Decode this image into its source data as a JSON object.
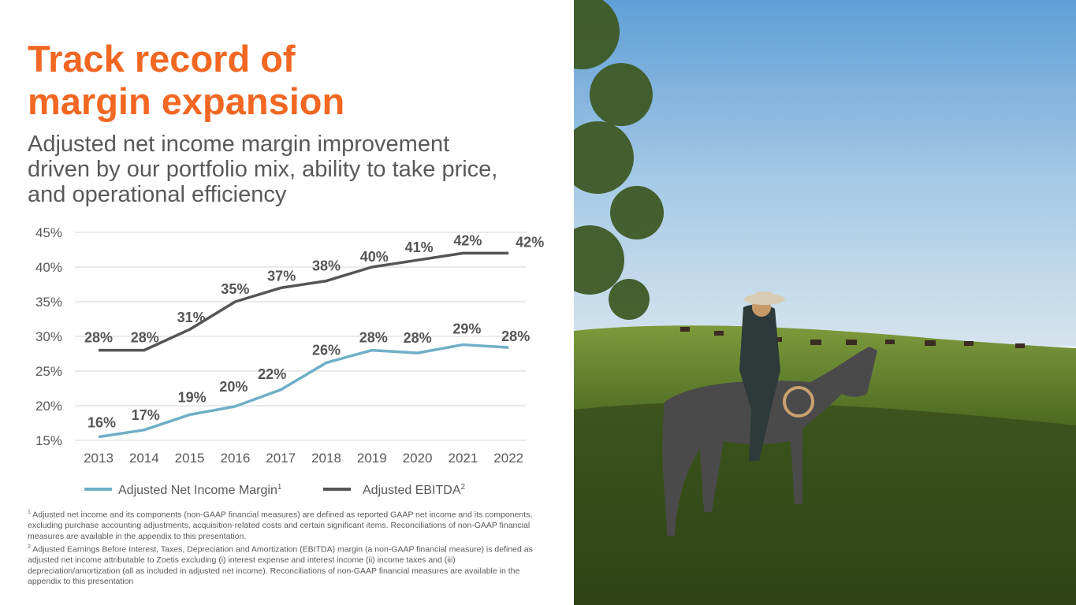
{
  "slide": {
    "title_lines": [
      "Track record of",
      "margin expansion"
    ],
    "subtitle_lines": [
      "Adjusted net income margin improvement",
      "driven by our portfolio mix, ability to take price,",
      "and operational efficiency"
    ],
    "footnotes": [
      {
        "marker": "1",
        "text": "Adjusted net income and its components (non-GAAP financial measures) are defined as reported GAAP net income and its components, excluding purchase accounting adjustments, acquisition-related costs and certain significant items. Reconciliations of non-GAAP financial measures are available in the appendix to this presentation."
      },
      {
        "marker": "2",
        "text": "Adjusted Earnings Before Interest, Taxes, Depreciation and Amortization (EBITDA) margin (a non-GAAP financial measure) is defined as adjusted net income attributable to Zoetis excluding (i) interest expense and interest income (ii) income taxes and (iii) depreciation/amortization (all as included in adjusted net income). Reconciliations of non-GAAP financial measures are available in the appendix to this presentation"
      }
    ]
  },
  "chart_data": {
    "type": "line",
    "title": "",
    "xlabel": "",
    "ylabel": "",
    "categories": [
      "2013",
      "2014",
      "2015",
      "2016",
      "2017",
      "2018",
      "2019",
      "2020",
      "2021",
      "2022"
    ],
    "ylim": [
      15,
      45
    ],
    "yticks": [
      "15%",
      "20%",
      "25%",
      "30%",
      "35%",
      "40%",
      "45%"
    ],
    "grid": true,
    "legend_position": "bottom",
    "series": [
      {
        "name": "Adjusted Net Income Margin",
        "superscript": "1",
        "color": "#6fafc7",
        "values": [
          15.5,
          16.5,
          18.7,
          19.9,
          22.3,
          26.2,
          28.0,
          27.6,
          28.8,
          28.4
        ],
        "labels": [
          "16%",
          "17%",
          "19%",
          "20%",
          "22%",
          "26%",
          "28%",
          "28%",
          "29%",
          "28%"
        ]
      },
      {
        "name": "Adjusted EBITDA",
        "superscript": "2",
        "color": "#555555",
        "values": [
          28.0,
          28.0,
          31.0,
          35.0,
          37.0,
          38.0,
          40.0,
          41.0,
          42.0,
          42.0
        ],
        "labels": [
          "28%",
          "28%",
          "31%",
          "35%",
          "37%",
          "38%",
          "40%",
          "41%",
          "42%",
          "42%"
        ]
      }
    ]
  }
}
